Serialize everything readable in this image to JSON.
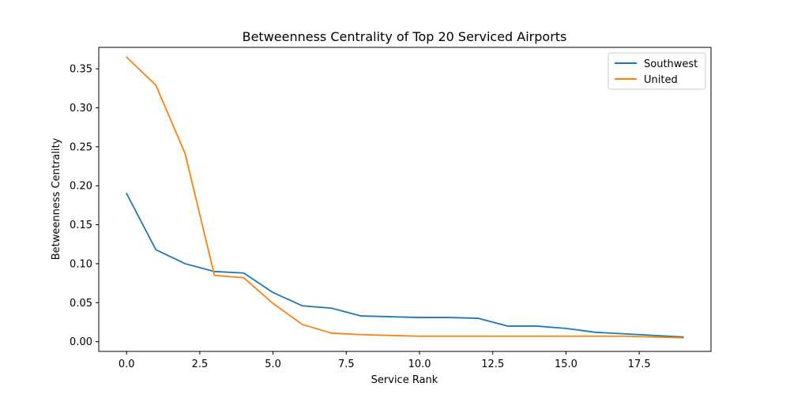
{
  "chart_data": {
    "type": "line",
    "title": "Betweenness Centrality of Top 20 Serviced Airports",
    "xlabel": "Service Rank",
    "ylabel": "Betweenness Centrality",
    "xlim": [
      -0.95,
      19.95
    ],
    "ylim": [
      -0.0125,
      0.3775
    ],
    "xticks": [
      0.0,
      2.5,
      5.0,
      7.5,
      10.0,
      12.5,
      15.0,
      17.5
    ],
    "xtick_labels": [
      "0.0",
      "2.5",
      "5.0",
      "7.5",
      "10.0",
      "12.5",
      "15.0",
      "17.5"
    ],
    "yticks": [
      0.0,
      0.05,
      0.1,
      0.15,
      0.2,
      0.25,
      0.3,
      0.35
    ],
    "ytick_labels": [
      "0.00",
      "0.05",
      "0.10",
      "0.15",
      "0.20",
      "0.25",
      "0.30",
      "0.35"
    ],
    "grid": false,
    "legend_position": "top-right",
    "x": [
      0,
      1,
      2,
      3,
      4,
      5,
      6,
      7,
      8,
      9,
      10,
      11,
      12,
      13,
      14,
      15,
      16,
      17,
      18,
      19
    ],
    "series": [
      {
        "name": "Southwest",
        "color": "#1f77b4",
        "values": [
          0.19,
          0.118,
          0.1,
          0.09,
          0.088,
          0.063,
          0.046,
          0.043,
          0.033,
          0.032,
          0.031,
          0.031,
          0.03,
          0.02,
          0.02,
          0.017,
          0.012,
          0.01,
          0.008,
          0.006
        ]
      },
      {
        "name": "United",
        "color": "#ff7f0e",
        "values": [
          0.365,
          0.329,
          0.241,
          0.085,
          0.082,
          0.049,
          0.022,
          0.011,
          0.009,
          0.008,
          0.007,
          0.007,
          0.007,
          0.007,
          0.007,
          0.007,
          0.007,
          0.007,
          0.006,
          0.005
        ]
      }
    ]
  }
}
